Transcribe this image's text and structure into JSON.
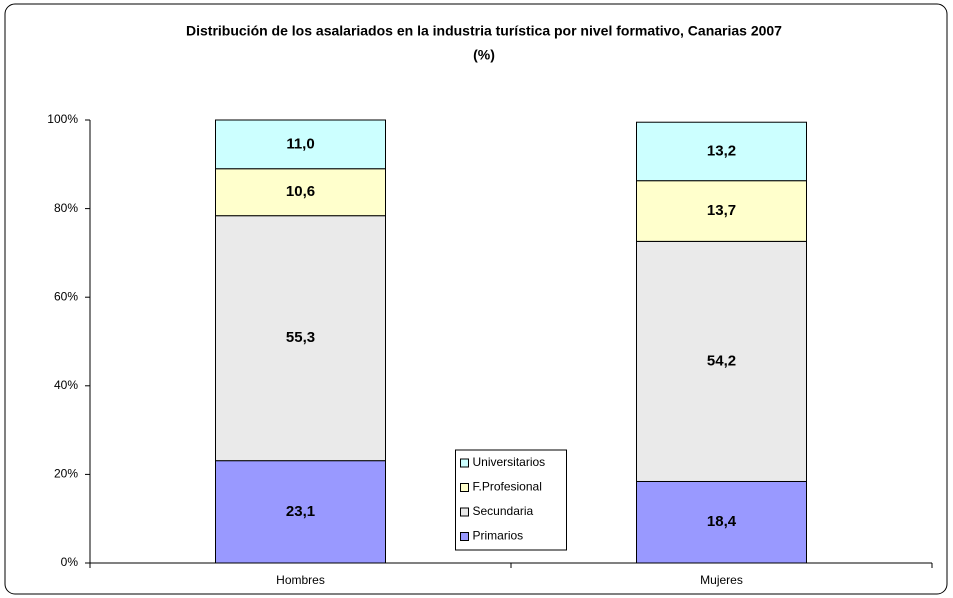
{
  "chart_data": {
    "type": "stacked_bar",
    "title": "Distribución de los asalariados en la industria turística por nivel formativo, Canarias 2007",
    "subtitle": "(%)",
    "categories": [
      "Hombres",
      "Mujeres"
    ],
    "series": [
      {
        "name": "Primarios",
        "color": "#9999ff",
        "values": [
          23.1,
          18.4
        ],
        "value_labels": [
          "23,1",
          "18,4"
        ]
      },
      {
        "name": "Secundaria",
        "color": "#eaeaea",
        "values": [
          55.3,
          54.2
        ],
        "value_labels": [
          "55,3",
          "54,2"
        ]
      },
      {
        "name": "F.Profesional",
        "color": "#ffffcc",
        "values": [
          10.6,
          13.7
        ],
        "value_labels": [
          "10,6",
          "13,7"
        ]
      },
      {
        "name": "Universitarios",
        "color": "#ccffff",
        "values": [
          11.0,
          13.2
        ],
        "value_labels": [
          "11,0",
          "13,2"
        ]
      }
    ],
    "ylim": [
      0,
      100
    ],
    "yticks": [
      {
        "value": 0,
        "label": "0%"
      },
      {
        "value": 20,
        "label": "20%"
      },
      {
        "value": 40,
        "label": "40%"
      },
      {
        "value": 60,
        "label": "60%"
      },
      {
        "value": 80,
        "label": "80%"
      },
      {
        "value": 100,
        "label": "100%"
      }
    ],
    "grid": false,
    "legend": "bottom"
  }
}
